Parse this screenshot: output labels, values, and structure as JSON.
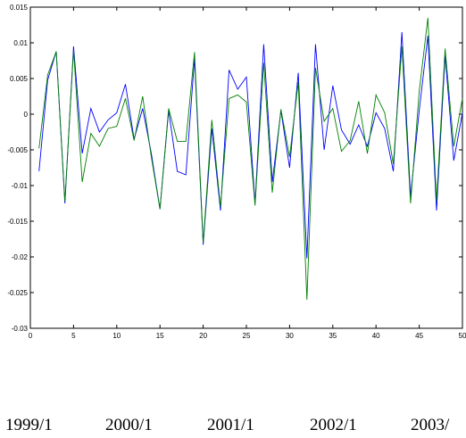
{
  "chart_data": {
    "type": "line",
    "title": "",
    "xlabel": "",
    "ylabel": "",
    "xlim": [
      0,
      50
    ],
    "ylim": [
      -0.03,
      0.015
    ],
    "x_ticks": [
      0,
      5,
      10,
      15,
      20,
      25,
      30,
      35,
      40,
      45,
      50
    ],
    "x_tick_labels": [
      "0",
      "5",
      "10",
      "15",
      "20",
      "25",
      "30",
      "35",
      "40",
      "45",
      "50"
    ],
    "y_ticks": [
      0.015,
      0.01,
      0.005,
      0,
      -0.005,
      -0.01,
      -0.015,
      -0.02,
      -0.025,
      -0.03
    ],
    "y_tick_labels": [
      "0.015",
      "0.01",
      "0.005",
      "0",
      "-0.005",
      "-0.01",
      "-0.015",
      "-0.02",
      "-0.025",
      "-0.03"
    ],
    "grid": false,
    "x": [
      1,
      2,
      3,
      4,
      5,
      6,
      7,
      8,
      9,
      10,
      11,
      12,
      13,
      14,
      15,
      16,
      17,
      18,
      19,
      20,
      21,
      22,
      23,
      24,
      25,
      26,
      27,
      28,
      29,
      30,
      31,
      32,
      33,
      34,
      35,
      36,
      37,
      38,
      39,
      40,
      41,
      42,
      43,
      44,
      45,
      46,
      47,
      48,
      49,
      50
    ],
    "series": [
      {
        "color": "#0000ff",
        "values": [
          -0.008,
          0.0048,
          0.0088,
          -0.0125,
          0.0095,
          -0.0055,
          0.0008,
          -0.0025,
          -0.0008,
          0.0002,
          0.0042,
          -0.0035,
          0.0008,
          -0.0055,
          -0.0133,
          0.0005,
          -0.008,
          -0.0085,
          0.0078,
          -0.0183,
          -0.002,
          -0.0135,
          0.0062,
          0.0035,
          0.0052,
          -0.0125,
          0.0098,
          -0.0095,
          0.0005,
          -0.0075,
          0.0058,
          -0.0202,
          0.0098,
          -0.005,
          0.004,
          -0.0022,
          -0.0042,
          -0.0015,
          -0.0045,
          0.0002,
          -0.002,
          -0.008,
          0.0115,
          -0.0115,
          0.0005,
          0.011,
          -0.0135,
          0.0082,
          -0.0065,
          0.0002
        ]
      },
      {
        "color": "#008000",
        "values": [
          -0.0048,
          0.0055,
          0.0088,
          -0.0122,
          0.009,
          -0.0095,
          -0.0027,
          -0.0045,
          -0.002,
          -0.0017,
          0.0022,
          -0.0037,
          0.0025,
          -0.006,
          -0.0133,
          0.0008,
          -0.0038,
          -0.0038,
          0.0087,
          -0.018,
          -0.0008,
          -0.013,
          0.0022,
          0.0027,
          0.0017,
          -0.0128,
          0.0072,
          -0.011,
          0.0007,
          -0.006,
          0.0045,
          -0.026,
          0.0065,
          -0.001,
          0.0008,
          -0.0052,
          -0.0037,
          0.0018,
          -0.0055,
          0.0027,
          0.0002,
          -0.007,
          0.0095,
          -0.0125,
          0.0032,
          0.0135,
          -0.0122,
          0.0092,
          -0.0045,
          0.0022
        ]
      }
    ]
  },
  "date_labels": [
    "1999/1",
    "2000/1",
    "2001/1",
    "2002/1",
    "2003/"
  ]
}
